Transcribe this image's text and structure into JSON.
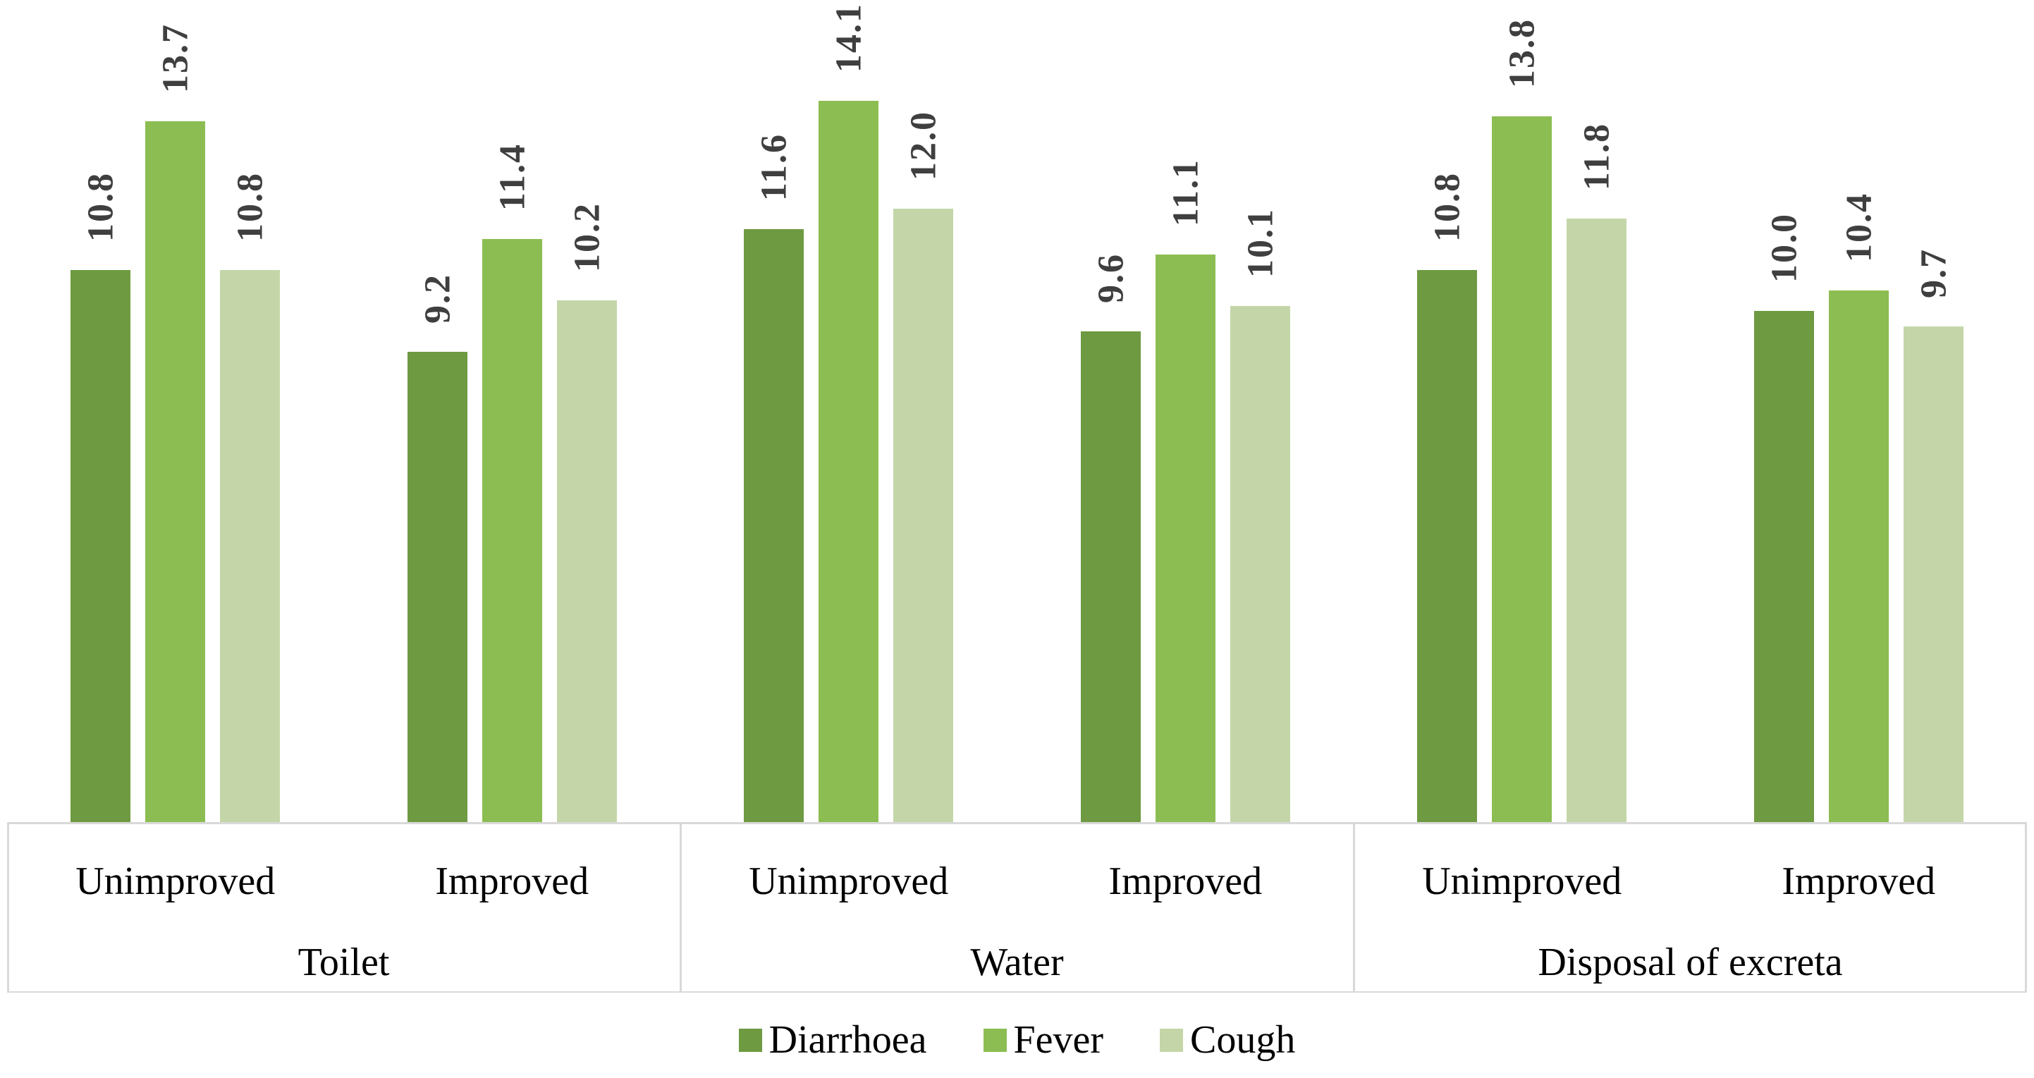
{
  "chart_data": {
    "type": "bar",
    "title": "",
    "xlabel": "",
    "ylabel": "",
    "ylim": [
      0,
      16
    ],
    "grid": false,
    "legend_position": "bottom",
    "value_label_style": "rotated 90deg, bold, above each bar",
    "axis_line_color": "#d9d9d9",
    "series": [
      {
        "name": "Diarrhoea",
        "color": "#6e9a41"
      },
      {
        "name": "Fever",
        "color": "#8cbd52"
      },
      {
        "name": "Cough",
        "color": "#c4d6a8"
      }
    ],
    "groups": [
      {
        "category": "Toilet",
        "subgroups": [
          {
            "label": "Unimproved",
            "values": [
              10.8,
              13.7,
              10.8
            ],
            "value_labels": [
              "10.8",
              "13.7",
              "10.8"
            ]
          },
          {
            "label": "Improved",
            "values": [
              9.2,
              11.4,
              10.2
            ],
            "value_labels": [
              "9.2",
              "11.4",
              "10.2"
            ]
          }
        ]
      },
      {
        "category": "Water",
        "subgroups": [
          {
            "label": "Unimproved",
            "values": [
              11.6,
              14.1,
              12.0
            ],
            "value_labels": [
              "11.6",
              "14.1",
              "12.0"
            ]
          },
          {
            "label": "Improved",
            "values": [
              9.6,
              11.1,
              10.1
            ],
            "value_labels": [
              "9.6",
              "11.1",
              "10.1"
            ]
          }
        ]
      },
      {
        "category": "Disposal of excreta",
        "subgroups": [
          {
            "label": "Unimproved",
            "values": [
              10.8,
              13.8,
              11.8
            ],
            "value_labels": [
              "10.8",
              "13.8",
              "11.8"
            ]
          },
          {
            "label": "Improved",
            "values": [
              10.0,
              10.4,
              9.7
            ],
            "value_labels": [
              "10.0",
              "10.4",
              "9.7"
            ]
          }
        ]
      }
    ]
  }
}
